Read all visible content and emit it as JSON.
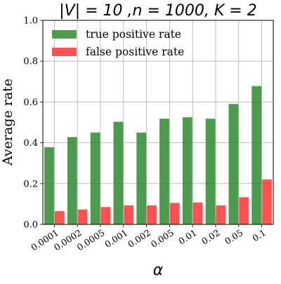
{
  "chart_data": {
    "type": "bar",
    "title": "|V| = 10 ,n = 1000, K = 2",
    "xlabel": "α",
    "ylabel": "Average rate",
    "categories": [
      "0.0001",
      "0.0002",
      "0.0005",
      "0.001",
      "0.002",
      "0.005",
      "0.01",
      "0.02",
      "0.05",
      "0.1"
    ],
    "series": [
      {
        "name": "true positive rate",
        "color": "#2e8b2e",
        "values": [
          0.378,
          0.428,
          0.45,
          0.503,
          0.45,
          0.518,
          0.525,
          0.518,
          0.59,
          0.678
        ]
      },
      {
        "name": "false positive rate",
        "color": "#ff3333",
        "values": [
          0.065,
          0.073,
          0.085,
          0.093,
          0.093,
          0.105,
          0.107,
          0.093,
          0.133,
          0.22
        ]
      }
    ],
    "ylim": [
      0,
      1.0
    ],
    "yticks": [
      "0.0",
      "0.2",
      "0.4",
      "0.6",
      "0.8",
      "1.0"
    ],
    "grid": true,
    "legend_position": "top-left"
  }
}
